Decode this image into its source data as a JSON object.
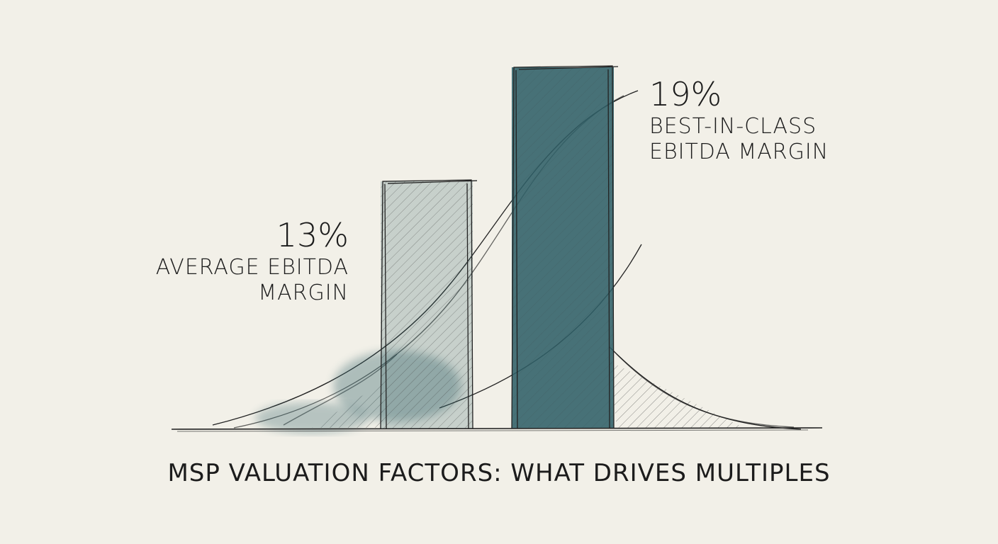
{
  "chart_data": {
    "type": "bar",
    "title": "MSP VALUATION FACTORS: WHAT DRIVES MULTIPLES",
    "categories": [
      "AVERAGE EBITDA MARGIN",
      "BEST-IN-CLASS EBITDA MARGIN"
    ],
    "values": [
      13,
      19
    ],
    "value_labels": [
      "13%",
      "19%"
    ],
    "color": "#2f5f66"
  }
}
